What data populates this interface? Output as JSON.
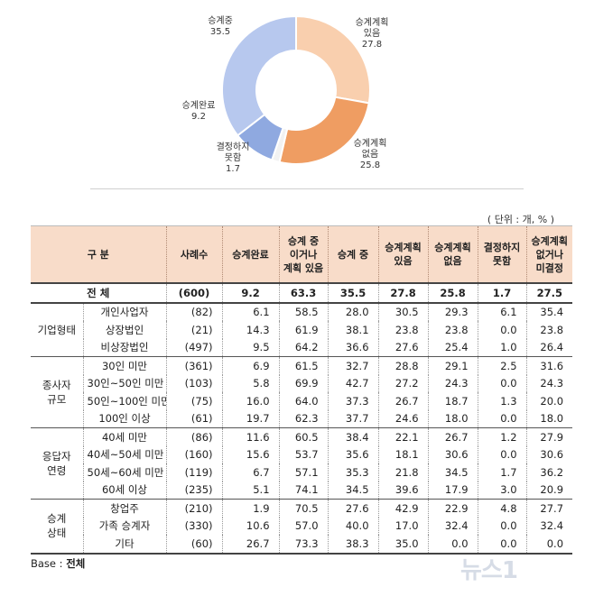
{
  "chart_data": [
    {
      "type": "pie",
      "title": "",
      "labels": [
        "승계계획 있음",
        "승계계획 없음",
        "결정하지 못함",
        "승계완료",
        "승계중"
      ],
      "label_lines": [
        [
          "승계계획",
          "있음"
        ],
        [
          "승계계획",
          "없음"
        ],
        [
          "결정하지",
          "못함"
        ],
        [
          "승계완료"
        ],
        [
          "승계중"
        ]
      ],
      "values": [
        27.8,
        25.8,
        1.7,
        9.2,
        35.5
      ],
      "value_labels": [
        "27.8",
        "25.8",
        "1.7",
        "9.2",
        "35.5"
      ],
      "colors": [
        "#f9cfae",
        "#ef9d62",
        "#f2f2f2",
        "#8fa9e0",
        "#b7c8ee"
      ],
      "donut": true
    },
    {
      "type": "table",
      "unit": "( 단위 : 개, % )",
      "columns": [
        "구  분",
        "사례수",
        "승계완료",
        "승계 중 이거나 계획 있음",
        "승계 중",
        "승계계획 있음",
        "승계계획 없음",
        "결정하지 못함",
        "승계계획 없거나 미결정"
      ],
      "column_lines": [
        [
          "구  분"
        ],
        [
          "사례수"
        ],
        [
          "승계완료"
        ],
        [
          "승계 중",
          "이거나",
          "계획 있음"
        ],
        [
          "승계 중"
        ],
        [
          "승계계획",
          "있음"
        ],
        [
          "승계계획",
          "없음"
        ],
        [
          "결정하지",
          "못함"
        ],
        [
          "승계계획",
          "없거나",
          "미결정"
        ]
      ],
      "total": {
        "label": "전    체",
        "n": "(600)",
        "values": [
          "9.2",
          "63.3",
          "35.5",
          "27.8",
          "25.8",
          "1.7",
          "27.5"
        ]
      },
      "groups": [
        {
          "name_lines": [
            "기업형태"
          ],
          "rows": [
            {
              "label": "개인사업자",
              "n": "(82)",
              "values": [
                "6.1",
                "58.5",
                "28.0",
                "30.5",
                "29.3",
                "6.1",
                "35.4"
              ]
            },
            {
              "label": "상장법인",
              "n": "(21)",
              "values": [
                "14.3",
                "61.9",
                "38.1",
                "23.8",
                "23.8",
                "0.0",
                "23.8"
              ]
            },
            {
              "label": "비상장법인",
              "n": "(497)",
              "values": [
                "9.5",
                "64.2",
                "36.6",
                "27.6",
                "25.4",
                "1.0",
                "26.4"
              ]
            }
          ]
        },
        {
          "name_lines": [
            "종사자",
            "규모"
          ],
          "rows": [
            {
              "label": "30인 미만",
              "n": "(361)",
              "values": [
                "6.9",
                "61.5",
                "32.7",
                "28.8",
                "29.1",
                "2.5",
                "31.6"
              ]
            },
            {
              "label": "30인~50인 미만",
              "n": "(103)",
              "values": [
                "5.8",
                "69.9",
                "42.7",
                "27.2",
                "24.3",
                "0.0",
                "24.3"
              ]
            },
            {
              "label": "50인~100인 미만",
              "n": "(75)",
              "values": [
                "16.0",
                "64.0",
                "37.3",
                "26.7",
                "18.7",
                "1.3",
                "20.0"
              ]
            },
            {
              "label": "100인 이상",
              "n": "(61)",
              "values": [
                "19.7",
                "62.3",
                "37.7",
                "24.6",
                "18.0",
                "0.0",
                "18.0"
              ]
            }
          ]
        },
        {
          "name_lines": [
            "응답자",
            "연령"
          ],
          "rows": [
            {
              "label": "40세 미만",
              "n": "(86)",
              "values": [
                "11.6",
                "60.5",
                "38.4",
                "22.1",
                "26.7",
                "1.2",
                "27.9"
              ]
            },
            {
              "label": "40세~50세 미만",
              "n": "(160)",
              "values": [
                "15.6",
                "53.7",
                "35.6",
                "18.1",
                "30.6",
                "0.0",
                "30.6"
              ]
            },
            {
              "label": "50세~60세 미만",
              "n": "(119)",
              "values": [
                "6.7",
                "57.1",
                "35.3",
                "21.8",
                "34.5",
                "1.7",
                "36.2"
              ]
            },
            {
              "label": "60세 이상",
              "n": "(235)",
              "values": [
                "5.1",
                "74.1",
                "34.5",
                "39.6",
                "17.9",
                "3.0",
                "20.9"
              ]
            }
          ]
        },
        {
          "name_lines": [
            "승계",
            "상태"
          ],
          "rows": [
            {
              "label": "창업주",
              "n": "(210)",
              "values": [
                "1.9",
                "70.5",
                "27.6",
                "42.9",
                "22.9",
                "4.8",
                "27.7"
              ]
            },
            {
              "label": "가족 승계자",
              "n": "(330)",
              "values": [
                "10.6",
                "57.0",
                "40.0",
                "17.0",
                "32.4",
                "0.0",
                "32.4"
              ]
            },
            {
              "label": "기타",
              "n": "(60)",
              "values": [
                "26.7",
                "73.3",
                "38.3",
                "35.0",
                "0.0",
                "0.0",
                "0.0"
              ]
            }
          ]
        }
      ]
    }
  ],
  "base": {
    "prefix": "Base : ",
    "value": "전체"
  },
  "watermark": "뉴스1"
}
